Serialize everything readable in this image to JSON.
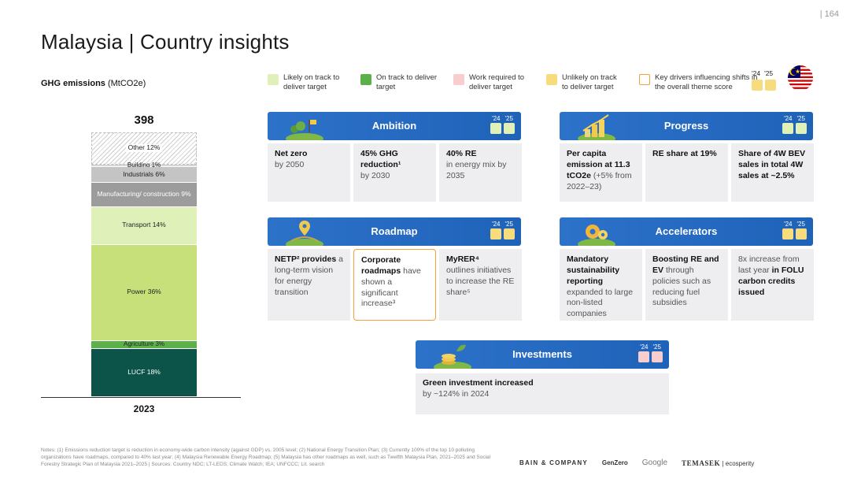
{
  "page_number": "| 164",
  "title": "Malaysia | Country insights",
  "ghg": {
    "title": "GHG emissions",
    "unit": "(MtCO2e)",
    "total": "398",
    "year": "2023",
    "segments": [
      {
        "label": "Other 12%",
        "pct": 12,
        "color": "#ffffff",
        "pattern": "hatch"
      },
      {
        "label": "Building 1%",
        "pct": 1,
        "color": "#d6d6d6"
      },
      {
        "label": "Industrials 6%",
        "pct": 6,
        "color": "#c4c4c4"
      },
      {
        "label": "Manufacturing/ construction 9%",
        "pct": 9,
        "color": "#9c9c9c",
        "text_color": "#ffffff"
      },
      {
        "label": "Transport 14%",
        "pct": 14,
        "color": "#dff0b8"
      },
      {
        "label": "Power 36%",
        "pct": 36,
        "color": "#c8e07a"
      },
      {
        "label": "Agriculture 3%",
        "pct": 3,
        "color": "#5db04a"
      },
      {
        "label": "LUCF 18%",
        "pct": 18,
        "color": "#0c5449",
        "text_color": "#ffffff"
      }
    ]
  },
  "legend": {
    "items": [
      {
        "label": "Likely on track to deliver target",
        "color": "#dff0b8",
        "border": "none"
      },
      {
        "label": "On track to deliver target",
        "color": "#5cb04a",
        "border": "none"
      },
      {
        "label": "Work required to deliver target",
        "color": "#f8cdd0",
        "border": "none"
      },
      {
        "label": "Unlikely on track to deliver target",
        "color": "#f7dc7e",
        "border": "none"
      },
      {
        "label": "Key drivers influencing shifts in the overall theme score",
        "color": "#ffffff",
        "border": "#f0a03c"
      }
    ],
    "year_a": "'24",
    "year_b": "'25",
    "year_colors": [
      "#f7dc7e",
      "#f7dc7e"
    ]
  },
  "panels": {
    "ambition": {
      "title": "Ambition",
      "year_a": "'24",
      "year_b": "'25",
      "colors": [
        "#dff0b8",
        "#dff0b8"
      ],
      "cards": [
        {
          "bold": "Net zero",
          "text": "by 2050"
        },
        {
          "bold": "45% GHG reduction¹",
          "text": "by 2030"
        },
        {
          "bold": "40% RE",
          "text": "in energy mix by 2035"
        }
      ]
    },
    "progress": {
      "title": "Progress",
      "year_a": "'24",
      "year_b": "'25",
      "colors": [
        "#dff0b8",
        "#dff0b8"
      ],
      "cards": [
        {
          "bold": "Per capita emission at 11.3 tCO2e",
          "text": "(+5% from 2022–23)"
        },
        {
          "bold": "RE share at 19%",
          "text": ""
        },
        {
          "bold": "Share of 4W BEV sales in total 4W sales at ~2.5%",
          "text": ""
        }
      ]
    },
    "roadmap": {
      "title": "Roadmap",
      "year_a": "'24",
      "year_b": "'25",
      "colors": [
        "#f7dc7e",
        "#f7dc7e"
      ],
      "cards": [
        {
          "bold": "NETP² provides",
          "text": "a long-term vision for energy transition"
        },
        {
          "bold": "Corporate roadmaps",
          "text": "have shown a significant increase³"
        },
        {
          "bold": "MyRER⁴",
          "text": "outlines initiatives to increase the RE share⁵"
        }
      ]
    },
    "accelerators": {
      "title": "Accelerators",
      "year_a": "'24",
      "year_b": "'25",
      "colors": [
        "#f7dc7e",
        "#f7dc7e"
      ],
      "cards": [
        {
          "bold": "Mandatory sustainability reporting",
          "text": "expanded to large non-listed companies"
        },
        {
          "bold": "Boosting RE and EV",
          "text": "through policies such as reducing fuel subsidies"
        },
        {
          "bold": "in FOLU carbon credits issued",
          "text": "8x increase from last year"
        }
      ]
    },
    "investments": {
      "title": "Investments",
      "year_a": "'24",
      "year_b": "'25",
      "colors": [
        "#f8cdd0",
        "#f8cdd0"
      ],
      "card": {
        "bold": "Green investment increased",
        "text": "by ~124% in 2024"
      }
    }
  },
  "notes": "Notes: (1) Emissions reduction target is reduction in economy-wide carbon intensity (against GDP) vs. 2005 level; (2) National Energy Transition Plan; (3) Currently 100% of the top 10 polluting organizations have roadmaps, compared to 40% last year; (4) Malaysia Renewable Energy Roadmap; (5) Malaysia has other roadmaps as well, such as Twelfth Malaysia Plan, 2021–2025 and Social Forestry Strategic Plan of Malaysia 2021–2025 | Sources: Country NDC; LT-LEDS; Climate Watch; IEA; UNFCCC; Lit. search",
  "logos": {
    "bain": "BAIN & COMPANY",
    "genzero": "GenZero",
    "google": "Google",
    "temasek": "TEMASEK",
    "ecosperity": "| ecosperity"
  }
}
